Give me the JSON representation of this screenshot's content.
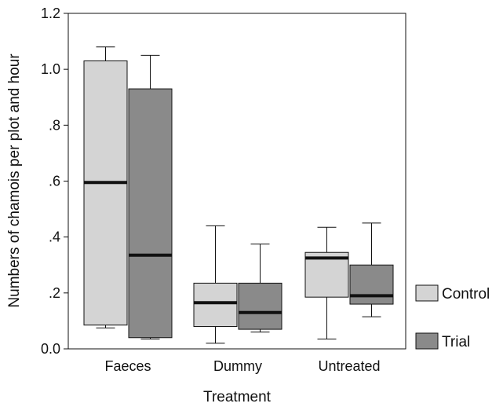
{
  "chart_data": {
    "type": "boxplot",
    "xlabel": "Treatment",
    "ylabel": "Numbers of chamois per plot and hour",
    "ylim": [
      0,
      1.2
    ],
    "yticks": [
      {
        "value": 0.0,
        "label": "0.0"
      },
      {
        "value": 0.2,
        "label": ".2"
      },
      {
        "value": 0.4,
        "label": ".4"
      },
      {
        "value": 0.6,
        "label": ".6"
      },
      {
        "value": 0.8,
        "label": ".8"
      },
      {
        "value": 1.0,
        "label": "1.0"
      },
      {
        "value": 1.2,
        "label": "1.2"
      }
    ],
    "categories": [
      "Faeces",
      "Dummy",
      "Untreated"
    ],
    "legend_position": "right",
    "series": [
      {
        "name": "Control",
        "color": "#d4d4d4",
        "boxes": [
          {
            "whisker_low": 0.075,
            "q1": 0.085,
            "median": 0.595,
            "q3": 1.03,
            "whisker_high": 1.08
          },
          {
            "whisker_low": 0.02,
            "q1": 0.08,
            "median": 0.165,
            "q3": 0.235,
            "whisker_high": 0.44
          },
          {
            "whisker_low": 0.035,
            "q1": 0.185,
            "median": 0.325,
            "q3": 0.345,
            "whisker_high": 0.435
          }
        ]
      },
      {
        "name": "Trial",
        "color": "#8a8a8a",
        "boxes": [
          {
            "whisker_low": 0.035,
            "q1": 0.04,
            "median": 0.335,
            "q3": 0.93,
            "whisker_high": 1.05
          },
          {
            "whisker_low": 0.06,
            "q1": 0.07,
            "median": 0.13,
            "q3": 0.235,
            "whisker_high": 0.375
          },
          {
            "whisker_low": 0.115,
            "q1": 0.16,
            "median": 0.19,
            "q3": 0.3,
            "whisker_high": 0.45
          }
        ]
      }
    ]
  }
}
